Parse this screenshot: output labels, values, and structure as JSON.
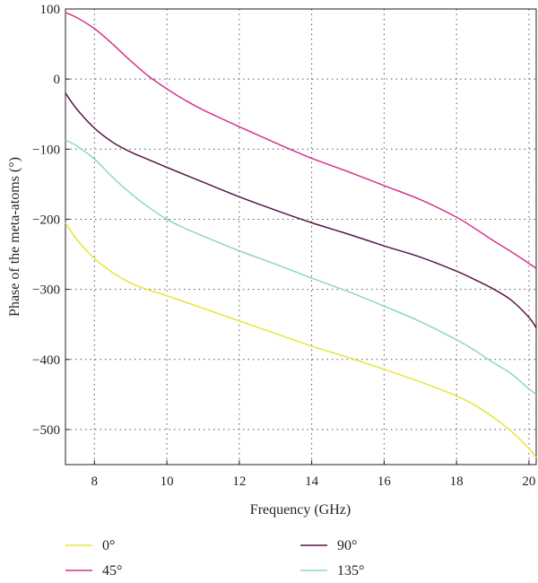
{
  "chart_data": {
    "type": "line",
    "title": "",
    "xlabel": "Frequency (GHz)",
    "ylabel": "Phase of the meta-atoms (°)",
    "xlim": [
      7.2,
      20.2
    ],
    "ylim": [
      -550,
      100
    ],
    "xticks": [
      8,
      10,
      12,
      14,
      16,
      18,
      20
    ],
    "yticks": [
      100,
      0,
      -100,
      -200,
      -300,
      -400,
      -500
    ],
    "ytick_labels": [
      "100",
      "0",
      "−100",
      "−200",
      "−300",
      "−400",
      "−500"
    ],
    "grid": true,
    "legend_position": "bottom",
    "series": [
      {
        "name": "0°",
        "color": "#e5e53a",
        "points": [
          [
            7.2,
            -205
          ],
          [
            7.5,
            -228
          ],
          [
            8,
            -256
          ],
          [
            8.5,
            -276
          ],
          [
            9,
            -291
          ],
          [
            9.5,
            -301
          ],
          [
            10,
            -309
          ],
          [
            11,
            -327
          ],
          [
            12,
            -345
          ],
          [
            13,
            -363
          ],
          [
            14,
            -381
          ],
          [
            15,
            -397
          ],
          [
            16,
            -414
          ],
          [
            17,
            -432
          ],
          [
            18,
            -452
          ],
          [
            18.5,
            -465
          ],
          [
            19,
            -482
          ],
          [
            19.5,
            -502
          ],
          [
            20,
            -527
          ],
          [
            20.2,
            -540
          ]
        ]
      },
      {
        "name": "45°",
        "color": "#d6338f",
        "points": [
          [
            7.2,
            95
          ],
          [
            7.5,
            88
          ],
          [
            8,
            72
          ],
          [
            8.5,
            50
          ],
          [
            9,
            26
          ],
          [
            9.5,
            4
          ],
          [
            10,
            -14
          ],
          [
            10.5,
            -30
          ],
          [
            11,
            -44
          ],
          [
            12,
            -68
          ],
          [
            13,
            -91
          ],
          [
            14,
            -113
          ],
          [
            15,
            -132
          ],
          [
            16,
            -152
          ],
          [
            17,
            -172
          ],
          [
            18,
            -197
          ],
          [
            18.5,
            -213
          ],
          [
            19,
            -230
          ],
          [
            19.5,
            -246
          ],
          [
            20,
            -263
          ],
          [
            20.2,
            -270
          ]
        ]
      },
      {
        "name": "90°",
        "color": "#5c1448",
        "points": [
          [
            7.2,
            -20
          ],
          [
            7.5,
            -42
          ],
          [
            8,
            -70
          ],
          [
            8.5,
            -90
          ],
          [
            9,
            -104
          ],
          [
            9.5,
            -115
          ],
          [
            10,
            -126
          ],
          [
            11,
            -147
          ],
          [
            12,
            -168
          ],
          [
            13,
            -187
          ],
          [
            14,
            -205
          ],
          [
            15,
            -221
          ],
          [
            16,
            -238
          ],
          [
            17,
            -254
          ],
          [
            18,
            -274
          ],
          [
            18.5,
            -286
          ],
          [
            19,
            -299
          ],
          [
            19.5,
            -315
          ],
          [
            20,
            -340
          ],
          [
            20.2,
            -355
          ]
        ]
      },
      {
        "name": "135°",
        "color": "#8fd6c4",
        "points": [
          [
            7.2,
            -87
          ],
          [
            7.5,
            -95
          ],
          [
            8,
            -114
          ],
          [
            8.5,
            -140
          ],
          [
            9,
            -163
          ],
          [
            9.5,
            -183
          ],
          [
            10,
            -200
          ],
          [
            10.5,
            -213
          ],
          [
            11,
            -224
          ],
          [
            12,
            -245
          ],
          [
            13,
            -264
          ],
          [
            14,
            -284
          ],
          [
            15,
            -303
          ],
          [
            16,
            -324
          ],
          [
            17,
            -346
          ],
          [
            18,
            -372
          ],
          [
            18.5,
            -387
          ],
          [
            19,
            -404
          ],
          [
            19.5,
            -420
          ],
          [
            20,
            -442
          ],
          [
            20.2,
            -450
          ]
        ]
      }
    ]
  }
}
